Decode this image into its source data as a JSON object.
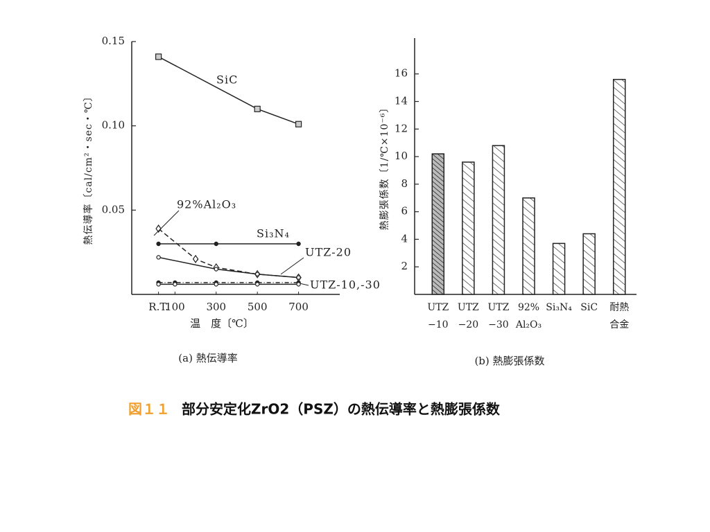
{
  "chart_data": [
    {
      "type": "line",
      "title": "(a) 熱伝導率",
      "x_label": "温　度〔℃〕",
      "y_label": "熱伝導率〔cal/cm²・sec・℃〕",
      "xlim": [
        -110,
        900
      ],
      "xticks": [
        {
          "value": 20,
          "label": "R.T."
        },
        100,
        300,
        500,
        700
      ],
      "ylim": [
        0,
        0.15
      ],
      "yticks": [
        0.15,
        {
          "value": 0.1,
          "label": "0.10"
        },
        0.05
      ],
      "series": [
        {
          "name": "SiC",
          "color": "#222",
          "dash": "solid",
          "marker": "square",
          "x": [
            20,
            500,
            700
          ],
          "values": [
            0.141,
            0.11,
            0.101
          ]
        },
        {
          "name": "92%Al₂O₃",
          "color": "#222",
          "dash": "dashed",
          "marker": "diamond",
          "x": [
            20,
            200,
            300,
            500,
            700
          ],
          "values": [
            0.039,
            0.021,
            0.016,
            0.012,
            0.01
          ]
        },
        {
          "name": "Si₃N₄",
          "color": "#222",
          "dash": "solid",
          "marker": "dot",
          "x": [
            20,
            300,
            700
          ],
          "values": [
            0.03,
            0.03,
            0.03
          ]
        },
        {
          "name": "UTZ-20",
          "color": "#222",
          "dash": "solid",
          "marker": "circle",
          "x": [
            20,
            300,
            500,
            700
          ],
          "values": [
            0.022,
            0.015,
            0.012,
            0.01
          ]
        },
        {
          "name": "UTZ-10,-30",
          "color": "#222",
          "dash": "dash-dot",
          "marker": "dot",
          "x": [
            20,
            100,
            300,
            500,
            700
          ],
          "values": [
            0.007,
            0.007,
            0.007,
            0.007,
            0.007
          ]
        },
        {
          "color": "#222",
          "dash": "solid",
          "marker": "circle",
          "x": [
            20,
            100,
            300,
            500,
            700
          ],
          "values": [
            0.006,
            0.006,
            0.006,
            0.006,
            0.006
          ]
        }
      ]
    },
    {
      "type": "bar",
      "title": "(b) 熱膨張係数",
      "y_label": "熱膨張係数〔1/℃×10⁻⁶〕",
      "categories": [
        [
          "UTZ",
          "−10"
        ],
        [
          "UTZ",
          "−20"
        ],
        [
          "UTZ",
          "−30"
        ],
        [
          "92%",
          "Al₂O₃"
        ],
        [
          "Si₃N₄"
        ],
        [
          "SiC"
        ],
        [
          "耐熱",
          "合金"
        ]
      ],
      "values": [
        10.2,
        9.6,
        10.8,
        7.0,
        3.7,
        4.4,
        15.6
      ],
      "hatch": [
        "dense",
        "sparse",
        "sparse",
        "sparse",
        "sparse",
        "sparse",
        "sparse"
      ],
      "color": "#222",
      "ylim": [
        0,
        18.6
      ],
      "yticks": [
        2,
        4,
        6,
        8,
        10,
        12,
        14,
        16
      ]
    }
  ],
  "caption": {
    "label": "図１１",
    "text": "部分安定化ZrO2（PSZ）の熱伝導率と熱膨張係数"
  }
}
